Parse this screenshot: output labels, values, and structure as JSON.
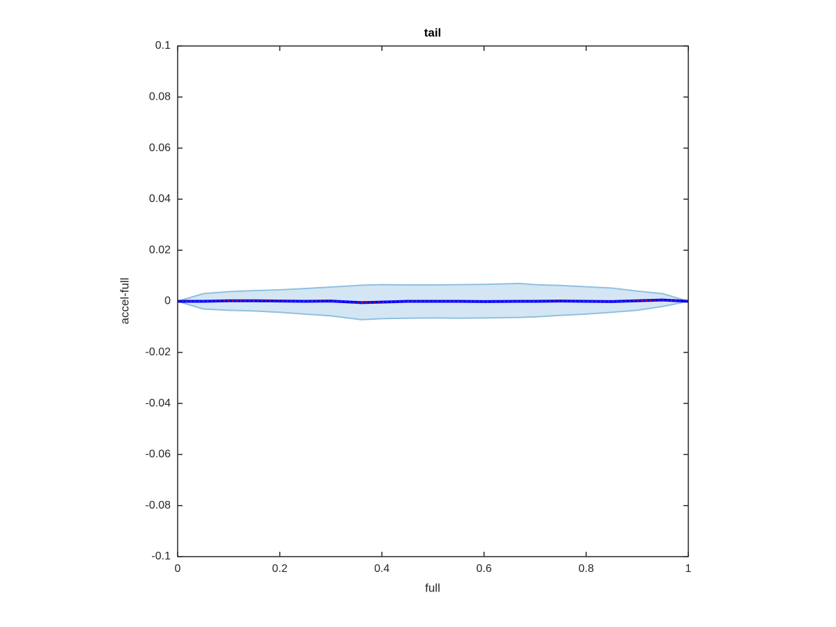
{
  "chart_data": {
    "type": "line",
    "title": "tail",
    "x_label": "full",
    "y_label": "accel-full",
    "x": [
      0,
      0.05,
      0.1,
      0.15,
      0.2,
      0.25,
      0.3,
      0.36,
      0.4,
      0.45,
      0.5,
      0.55,
      0.6,
      0.67,
      0.7,
      0.75,
      0.8,
      0.85,
      0.9,
      0.95,
      1
    ],
    "series": [
      {
        "color": "#0000ff",
        "values": [
          0,
          0,
          0.0002,
          0.0002,
          0.0001,
          0,
          0.0001,
          -0.0005,
          -0.0003,
          0,
          0,
          0,
          -0.0001,
          0,
          0,
          0.0001,
          0,
          -0.0001,
          0.0002,
          0.0005,
          0
        ]
      }
    ],
    "band": {
      "color": "#8fc0e0",
      "fill": "#d4e6f3",
      "upper": [
        0,
        0.003,
        0.0038,
        0.0042,
        0.0045,
        0.005,
        0.0056,
        0.0063,
        0.0065,
        0.0064,
        0.0064,
        0.0065,
        0.0066,
        0.007,
        0.0065,
        0.0062,
        0.0057,
        0.0052,
        0.004,
        0.003,
        0
      ],
      "lower": [
        0,
        -0.003,
        -0.0035,
        -0.0038,
        -0.0043,
        -0.005,
        -0.0057,
        -0.0072,
        -0.0068,
        -0.0066,
        -0.0065,
        -0.0066,
        -0.0065,
        -0.0063,
        -0.0061,
        -0.0055,
        -0.005,
        -0.0043,
        -0.0035,
        -0.002,
        0
      ]
    },
    "xlim": [
      0,
      1
    ],
    "ylim": [
      -0.1,
      0.1
    ],
    "xticks": [
      0,
      0.2,
      0.4,
      0.6,
      0.8,
      1
    ],
    "yticks": [
      -0.1,
      -0.08,
      -0.06,
      -0.04,
      -0.02,
      0,
      0.02,
      0.04,
      0.06,
      0.08,
      0.1
    ]
  }
}
